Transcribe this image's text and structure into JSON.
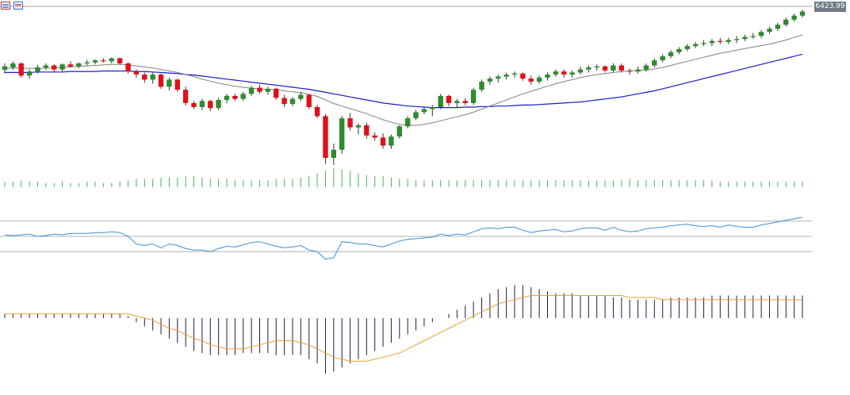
{
  "toolbar": {
    "icons": [
      "chart-list-icon",
      "chart-settings-icon"
    ]
  },
  "price_label": "6423.99",
  "colors": {
    "bull": "#2e8b2e",
    "bear": "#e0101a",
    "wick": "#333333",
    "ma_fast": "#808080",
    "ma_slow": "#1a1acc",
    "volume": "#4caf50",
    "rsi": "#3a8fd8",
    "rsi_levels": "#b0b0b0",
    "macd_hist": "#1c1c4a",
    "macd_signal": "#e8a030",
    "price_line": "#9aa3ad"
  },
  "chart_data": [
    {
      "type": "candlestick",
      "panel": "price",
      "title": "",
      "grid": false,
      "ohlc": [
        [
          6305,
          6318,
          6298,
          6312
        ],
        [
          6310,
          6322,
          6305,
          6318
        ],
        [
          6318,
          6320,
          6290,
          6294
        ],
        [
          6294,
          6306,
          6288,
          6302
        ],
        [
          6302,
          6315,
          6298,
          6310
        ],
        [
          6310,
          6318,
          6305,
          6314
        ],
        [
          6314,
          6316,
          6300,
          6306
        ],
        [
          6306,
          6318,
          6302,
          6316
        ],
        [
          6316,
          6322,
          6310,
          6312
        ],
        [
          6312,
          6320,
          6308,
          6318
        ],
        [
          6318,
          6325,
          6314,
          6320
        ],
        [
          6320,
          6326,
          6316,
          6324
        ],
        [
          6324,
          6328,
          6320,
          6322
        ],
        [
          6322,
          6330,
          6318,
          6328
        ],
        [
          6328,
          6330,
          6315,
          6318
        ],
        [
          6318,
          6320,
          6298,
          6302
        ],
        [
          6302,
          6306,
          6290,
          6296
        ],
        [
          6296,
          6300,
          6280,
          6286
        ],
        [
          6286,
          6300,
          6278,
          6296
        ],
        [
          6296,
          6298,
          6268,
          6272
        ],
        [
          6272,
          6290,
          6265,
          6286
        ],
        [
          6286,
          6288,
          6262,
          6266
        ],
        [
          6266,
          6272,
          6235,
          6240
        ],
        [
          6240,
          6244,
          6228,
          6232
        ],
        [
          6232,
          6248,
          6226,
          6244
        ],
        [
          6244,
          6246,
          6224,
          6230
        ],
        [
          6230,
          6250,
          6226,
          6246
        ],
        [
          6246,
          6258,
          6240,
          6254
        ],
        [
          6254,
          6258,
          6244,
          6248
        ],
        [
          6248,
          6262,
          6244,
          6258
        ],
        [
          6258,
          6274,
          6254,
          6270
        ],
        [
          6270,
          6276,
          6258,
          6262
        ],
        [
          6262,
          6272,
          6256,
          6268
        ],
        [
          6268,
          6270,
          6246,
          6250
        ],
        [
          6250,
          6256,
          6232,
          6238
        ],
        [
          6238,
          6252,
          6234,
          6248
        ],
        [
          6248,
          6262,
          6244,
          6256
        ],
        [
          6256,
          6258,
          6228,
          6232
        ],
        [
          6232,
          6236,
          6210,
          6214
        ],
        [
          6214,
          6218,
          6120,
          6132
        ],
        [
          6132,
          6160,
          6118,
          6148
        ],
        [
          6148,
          6215,
          6140,
          6210
        ],
        [
          6210,
          6220,
          6186,
          6192
        ],
        [
          6192,
          6200,
          6178,
          6196
        ],
        [
          6196,
          6202,
          6170,
          6176
        ],
        [
          6176,
          6182,
          6166,
          6172
        ],
        [
          6172,
          6180,
          6150,
          6156
        ],
        [
          6156,
          6178,
          6150,
          6174
        ],
        [
          6174,
          6196,
          6170,
          6194
        ],
        [
          6194,
          6214,
          6190,
          6210
        ],
        [
          6210,
          6226,
          6206,
          6222
        ],
        [
          6222,
          6232,
          6218,
          6228
        ],
        [
          6228,
          6236,
          6214,
          6232
        ],
        [
          6232,
          6258,
          6228,
          6254
        ],
        [
          6254,
          6256,
          6234,
          6240
        ],
        [
          6240,
          6248,
          6232,
          6244
        ],
        [
          6244,
          6250,
          6236,
          6240
        ],
        [
          6240,
          6270,
          6236,
          6266
        ],
        [
          6266,
          6286,
          6262,
          6282
        ],
        [
          6282,
          6292,
          6276,
          6288
        ],
        [
          6288,
          6296,
          6280,
          6292
        ],
        [
          6292,
          6300,
          6286,
          6296
        ],
        [
          6296,
          6302,
          6290,
          6298
        ],
        [
          6298,
          6300,
          6284,
          6288
        ],
        [
          6288,
          6294,
          6276,
          6282
        ],
        [
          6282,
          6294,
          6278,
          6290
        ],
        [
          6290,
          6300,
          6284,
          6296
        ],
        [
          6296,
          6306,
          6292,
          6302
        ],
        [
          6302,
          6306,
          6290,
          6296
        ],
        [
          6296,
          6304,
          6290,
          6300
        ],
        [
          6300,
          6312,
          6296,
          6306
        ],
        [
          6306,
          6314,
          6300,
          6310
        ],
        [
          6310,
          6316,
          6304,
          6312
        ],
        [
          6312,
          6314,
          6300,
          6304
        ],
        [
          6304,
          6318,
          6300,
          6314
        ],
        [
          6314,
          6318,
          6300,
          6304
        ],
        [
          6304,
          6308,
          6296,
          6302
        ],
        [
          6302,
          6312,
          6298,
          6306
        ],
        [
          6306,
          6318,
          6302,
          6314
        ],
        [
          6314,
          6328,
          6310,
          6324
        ],
        [
          6324,
          6336,
          6320,
          6332
        ],
        [
          6332,
          6344,
          6328,
          6340
        ],
        [
          6340,
          6350,
          6336,
          6346
        ],
        [
          6346,
          6356,
          6342,
          6352
        ],
        [
          6352,
          6360,
          6348,
          6356
        ],
        [
          6356,
          6364,
          6352,
          6358
        ],
        [
          6358,
          6366,
          6352,
          6362
        ],
        [
          6362,
          6368,
          6356,
          6360
        ],
        [
          6360,
          6368,
          6356,
          6364
        ],
        [
          6364,
          6372,
          6358,
          6366
        ],
        [
          6366,
          6374,
          6362,
          6370
        ],
        [
          6370,
          6378,
          6366,
          6372
        ],
        [
          6372,
          6384,
          6368,
          6380
        ],
        [
          6380,
          6390,
          6376,
          6386
        ],
        [
          6386,
          6398,
          6382,
          6394
        ],
        [
          6394,
          6408,
          6390,
          6404
        ],
        [
          6404,
          6416,
          6400,
          6412
        ],
        [
          6412,
          6424,
          6408,
          6420
        ]
      ],
      "ma_fast_values": [
        6308,
        6309,
        6309,
        6308,
        6308,
        6309,
        6309,
        6310,
        6311,
        6312,
        6313,
        6314,
        6315,
        6316,
        6316,
        6315,
        6313,
        6311,
        6309,
        6306,
        6303,
        6300,
        6296,
        6292,
        6287,
        6283,
        6279,
        6276,
        6273,
        6271,
        6269,
        6268,
        6267,
        6266,
        6264,
        6262,
        6260,
        6257,
        6253,
        6246,
        6239,
        6234,
        6229,
        6224,
        6219,
        6213,
        6207,
        6202,
        6198,
        6196,
        6196,
        6198,
        6201,
        6205,
        6209,
        6213,
        6217,
        6222,
        6228,
        6234,
        6240,
        6246,
        6252,
        6258,
        6263,
        6268,
        6273,
        6278,
        6282,
        6286,
        6290,
        6293,
        6296,
        6298,
        6300,
        6302,
        6303,
        6304,
        6305,
        6307,
        6310,
        6314,
        6318,
        6322,
        6326,
        6330,
        6334,
        6338,
        6341,
        6344,
        6347,
        6350,
        6353,
        6356,
        6360,
        6364,
        6369,
        6374
      ],
      "ma_slow_values": [
        6300,
        6300,
        6300,
        6300,
        6301,
        6301,
        6301,
        6301,
        6302,
        6302,
        6302,
        6302,
        6303,
        6303,
        6303,
        6303,
        6302,
        6302,
        6301,
        6300,
        6299,
        6298,
        6296,
        6295,
        6293,
        6291,
        6289,
        6287,
        6285,
        6283,
        6281,
        6279,
        6277,
        6275,
        6273,
        6271,
        6269,
        6267,
        6264,
        6261,
        6258,
        6255,
        6252,
        6249,
        6246,
        6243,
        6240,
        6238,
        6236,
        6234,
        6233,
        6232,
        6231,
        6231,
        6231,
        6231,
        6232,
        6232,
        6233,
        6233,
        6234,
        6234,
        6235,
        6236,
        6236,
        6237,
        6238,
        6239,
        6240,
        6241,
        6242,
        6244,
        6246,
        6248,
        6250,
        6252,
        6255,
        6258,
        6261,
        6264,
        6268,
        6272,
        6276,
        6280,
        6284,
        6288,
        6292,
        6296,
        6300,
        6304,
        6308,
        6312,
        6316,
        6320,
        6324,
        6328,
        6332,
        6336
      ]
    },
    {
      "type": "bar",
      "panel": "volume",
      "values": [
        4,
        4,
        5,
        4,
        4,
        3,
        3,
        4,
        3,
        3,
        4,
        4,
        3,
        3,
        4,
        5,
        6,
        6,
        6,
        7,
        7,
        7,
        8,
        8,
        7,
        6,
        6,
        6,
        5,
        5,
        5,
        5,
        5,
        6,
        6,
        6,
        7,
        8,
        10,
        12,
        14,
        13,
        12,
        10,
        9,
        8,
        8,
        7,
        6,
        6,
        5,
        5,
        5,
        5,
        5,
        5,
        5,
        5,
        5,
        5,
        5,
        5,
        5,
        5,
        5,
        5,
        5,
        5,
        5,
        5,
        5,
        5,
        5,
        5,
        5,
        5,
        6,
        5,
        5,
        5,
        5,
        5,
        5,
        5,
        5,
        5,
        5,
        4,
        4,
        4,
        4,
        4,
        4,
        4,
        4,
        4,
        4,
        4
      ]
    },
    {
      "type": "line",
      "panel": "rsi",
      "levels": [
        70,
        50,
        30
      ],
      "ylim": [
        0,
        100
      ],
      "values": [
        52,
        51,
        52,
        53,
        50,
        51,
        53,
        52,
        54,
        54,
        54,
        55,
        55,
        56,
        55,
        50,
        40,
        38,
        40,
        35,
        40,
        38,
        34,
        32,
        32,
        30,
        34,
        37,
        36,
        39,
        42,
        43,
        40,
        37,
        35,
        36,
        38,
        32,
        30,
        20,
        22,
        43,
        42,
        40,
        40,
        38,
        36,
        40,
        44,
        46,
        47,
        48,
        49,
        53,
        51,
        53,
        52,
        56,
        60,
        61,
        60,
        62,
        62,
        58,
        55,
        57,
        58,
        59,
        56,
        57,
        60,
        61,
        61,
        58,
        62,
        58,
        56,
        57,
        60,
        61,
        62,
        64,
        65,
        66,
        64,
        63,
        64,
        62,
        65,
        63,
        62,
        62,
        65,
        67,
        69,
        71,
        73,
        75
      ]
    },
    {
      "type": "bar",
      "panel": "macd",
      "hist_values": [
        2,
        2,
        2,
        2,
        2,
        2,
        2,
        2,
        2,
        2,
        2,
        2,
        2,
        2,
        2,
        1,
        -2,
        -4,
        -6,
        -8,
        -10,
        -12,
        -14,
        -16,
        -17,
        -18,
        -18,
        -18,
        -18,
        -17,
        -17,
        -17,
        -17,
        -18,
        -18,
        -18,
        -18,
        -20,
        -22,
        -27,
        -26,
        -24,
        -22,
        -20,
        -18,
        -16,
        -14,
        -12,
        -10,
        -8,
        -6,
        -4,
        -2,
        0,
        2,
        4,
        6,
        8,
        10,
        12,
        14,
        15,
        16,
        16,
        15,
        14,
        13,
        12,
        12,
        12,
        11,
        11,
        11,
        11,
        10,
        10,
        9,
        9,
        9,
        9,
        9,
        10,
        10,
        10,
        10,
        10,
        11,
        11,
        11,
        11,
        11,
        11,
        11,
        11,
        11,
        11,
        11,
        11
      ],
      "signal_values": [
        2,
        2,
        2,
        2,
        2,
        2,
        2,
        2,
        2,
        2,
        2,
        2,
        2,
        2,
        2,
        2,
        1,
        0,
        -1,
        -3,
        -5,
        -6,
        -8,
        -10,
        -11,
        -13,
        -14,
        -15,
        -15,
        -15,
        -14,
        -13,
        -12,
        -11,
        -11,
        -11,
        -12,
        -13,
        -15,
        -17,
        -19,
        -20,
        -21,
        -21,
        -21,
        -20,
        -19,
        -18,
        -17,
        -15,
        -13,
        -11,
        -9,
        -7,
        -5,
        -3,
        -1,
        1,
        3,
        5,
        7,
        8,
        9,
        10,
        11,
        11,
        11,
        11,
        11,
        11,
        11,
        11,
        11,
        11,
        11,
        11,
        10,
        10,
        10,
        10,
        9,
        9,
        9,
        9,
        9,
        9,
        9,
        9,
        9,
        9,
        9,
        9,
        9,
        9,
        9,
        9,
        9,
        9
      ]
    }
  ]
}
